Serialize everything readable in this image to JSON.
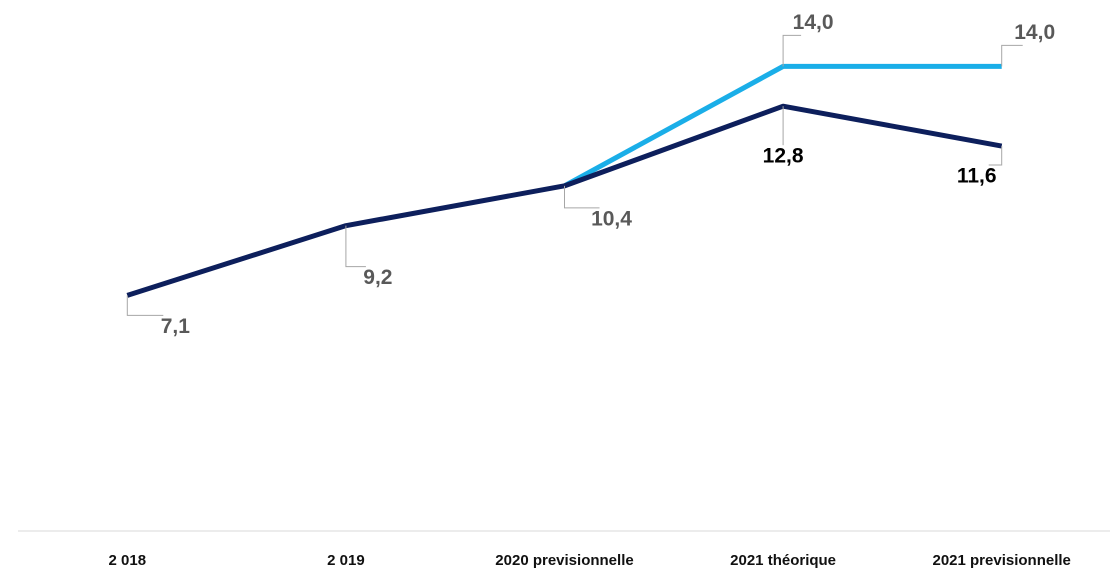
{
  "chart_data": {
    "type": "line",
    "categories": [
      "2 018",
      "2 019",
      "2020 previsionnelle",
      "2021 théorique",
      "2021 previsionnelle"
    ],
    "ylim": [
      0,
      16
    ],
    "series": [
      {
        "color": "#1aaee8",
        "values": [
          null,
          null,
          10.4,
          14.0,
          14.0
        ],
        "value_labels": [
          null,
          null,
          null,
          "14,0",
          "14,0"
        ],
        "label_colors": [
          null,
          null,
          null,
          "#595959",
          "#595959"
        ]
      },
      {
        "color": "#0d1f5c",
        "values": [
          7.1,
          9.2,
          10.4,
          12.8,
          11.6
        ],
        "value_labels": [
          "7,1",
          "9,2",
          "10,4",
          "12,8",
          "11,6"
        ],
        "label_colors": [
          "#595959",
          "#595959",
          "#595959",
          "#000000",
          "#000000"
        ]
      }
    ]
  }
}
